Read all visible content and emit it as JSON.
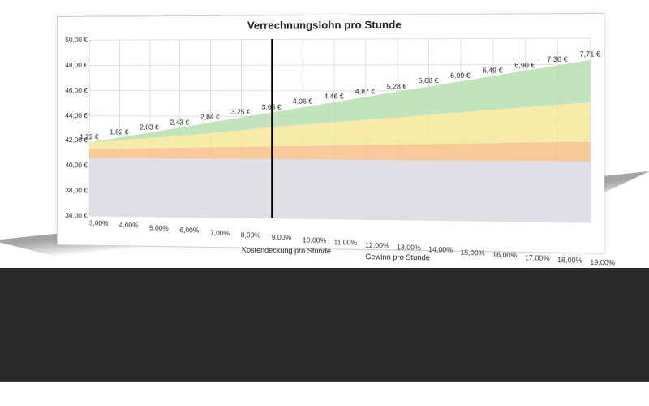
{
  "chart": {
    "type": "area",
    "title": "Verrechnungslohn pro Stunde",
    "title_fontsize": 13,
    "label_fontsize": 8.5,
    "background_color": "#ffffff",
    "grid_color": "#e0e0e0",
    "floor_color": "#2a2a2a",
    "vline_color": "#000000",
    "yaxis": {
      "min": 36,
      "max": 50,
      "step": 2,
      "suffix": ",00 €",
      "ticks": [
        "36,00 €",
        "38,00 €",
        "40,00 €",
        "42,00 €",
        "44,00 €",
        "46,00 €",
        "48,00 €",
        "50,00 €"
      ]
    },
    "xaxis": {
      "categories": [
        "3,00%",
        "4,00%",
        "5,00%",
        "6,00%",
        "7,00%",
        "8,00%",
        "9,00%",
        "10,00%",
        "11,00%",
        "12,00%",
        "13,00%",
        "14,00%",
        "15,00%",
        "16,00%",
        "17,00%",
        "18,00%",
        "19,00%"
      ]
    },
    "vline_index": 6,
    "series": [
      {
        "name": "Kostendeckung pro Stunde",
        "top_values": [
          40.6,
          40.6,
          40.6,
          40.6,
          40.6,
          40.6,
          40.6,
          40.6,
          40.6,
          40.6,
          40.6,
          40.6,
          40.6,
          40.6,
          40.6,
          40.6,
          40.6
        ],
        "bottom_values": [
          36,
          36,
          36,
          36,
          36,
          36,
          36,
          36,
          36,
          36,
          36,
          36,
          36,
          36,
          36,
          36,
          36
        ],
        "fill_color": "#dcdce2",
        "fill_opacity": 0.9
      },
      {
        "name": "orange_band",
        "top_values": [
          41.3,
          41.35,
          41.4,
          41.45,
          41.5,
          41.55,
          41.6,
          41.65,
          41.7,
          41.75,
          41.8,
          41.85,
          41.9,
          41.95,
          42.0,
          42.05,
          42.1
        ],
        "bottom_values": [
          40.6,
          40.6,
          40.6,
          40.6,
          40.6,
          40.6,
          40.6,
          40.6,
          40.6,
          40.6,
          40.6,
          40.6,
          40.6,
          40.6,
          40.6,
          40.6,
          40.6
        ],
        "fill_color": "#f6c089",
        "fill_opacity": 0.85
      },
      {
        "name": "yellow_band",
        "top_values": [
          41.8,
          42.0,
          42.2,
          42.4,
          42.6,
          42.85,
          43.1,
          43.3,
          43.5,
          43.7,
          43.9,
          44.1,
          44.3,
          44.5,
          44.7,
          44.9,
          45.1
        ],
        "bottom_values": [
          41.3,
          41.35,
          41.4,
          41.45,
          41.5,
          41.55,
          41.6,
          41.65,
          41.7,
          41.75,
          41.8,
          41.85,
          41.9,
          41.95,
          42.0,
          42.05,
          42.1
        ],
        "fill_color": "#f4e79a",
        "fill_opacity": 0.85
      },
      {
        "name": "Gewinn pro Stunde",
        "top_values": [
          41.82,
          42.22,
          42.63,
          43.03,
          43.44,
          43.85,
          44.25,
          44.66,
          45.06,
          45.47,
          45.88,
          46.28,
          46.69,
          47.09,
          47.5,
          47.9,
          48.31
        ],
        "bottom_values": [
          41.8,
          42.0,
          42.2,
          42.4,
          42.6,
          42.85,
          43.1,
          43.3,
          43.5,
          43.7,
          43.9,
          44.1,
          44.3,
          44.5,
          44.7,
          44.9,
          45.1
        ],
        "fill_color": "#b8deb0",
        "fill_opacity": 0.85,
        "datalabels": [
          "1,22 €",
          "1,62 €",
          "2,03 €",
          "2,43 €",
          "2,84 €",
          "3,25 €",
          "3,65 €",
          "4,06 €",
          "4,46 €",
          "4,87 €",
          "5,28 €",
          "5,68 €",
          "6,09 €",
          "6,49 €",
          "6,90 €",
          "7,30 €",
          "7,71 €"
        ]
      }
    ],
    "legend": {
      "items": [
        "Kostendeckung pro Stunde",
        "Gewinn pro Stunde"
      ]
    }
  }
}
